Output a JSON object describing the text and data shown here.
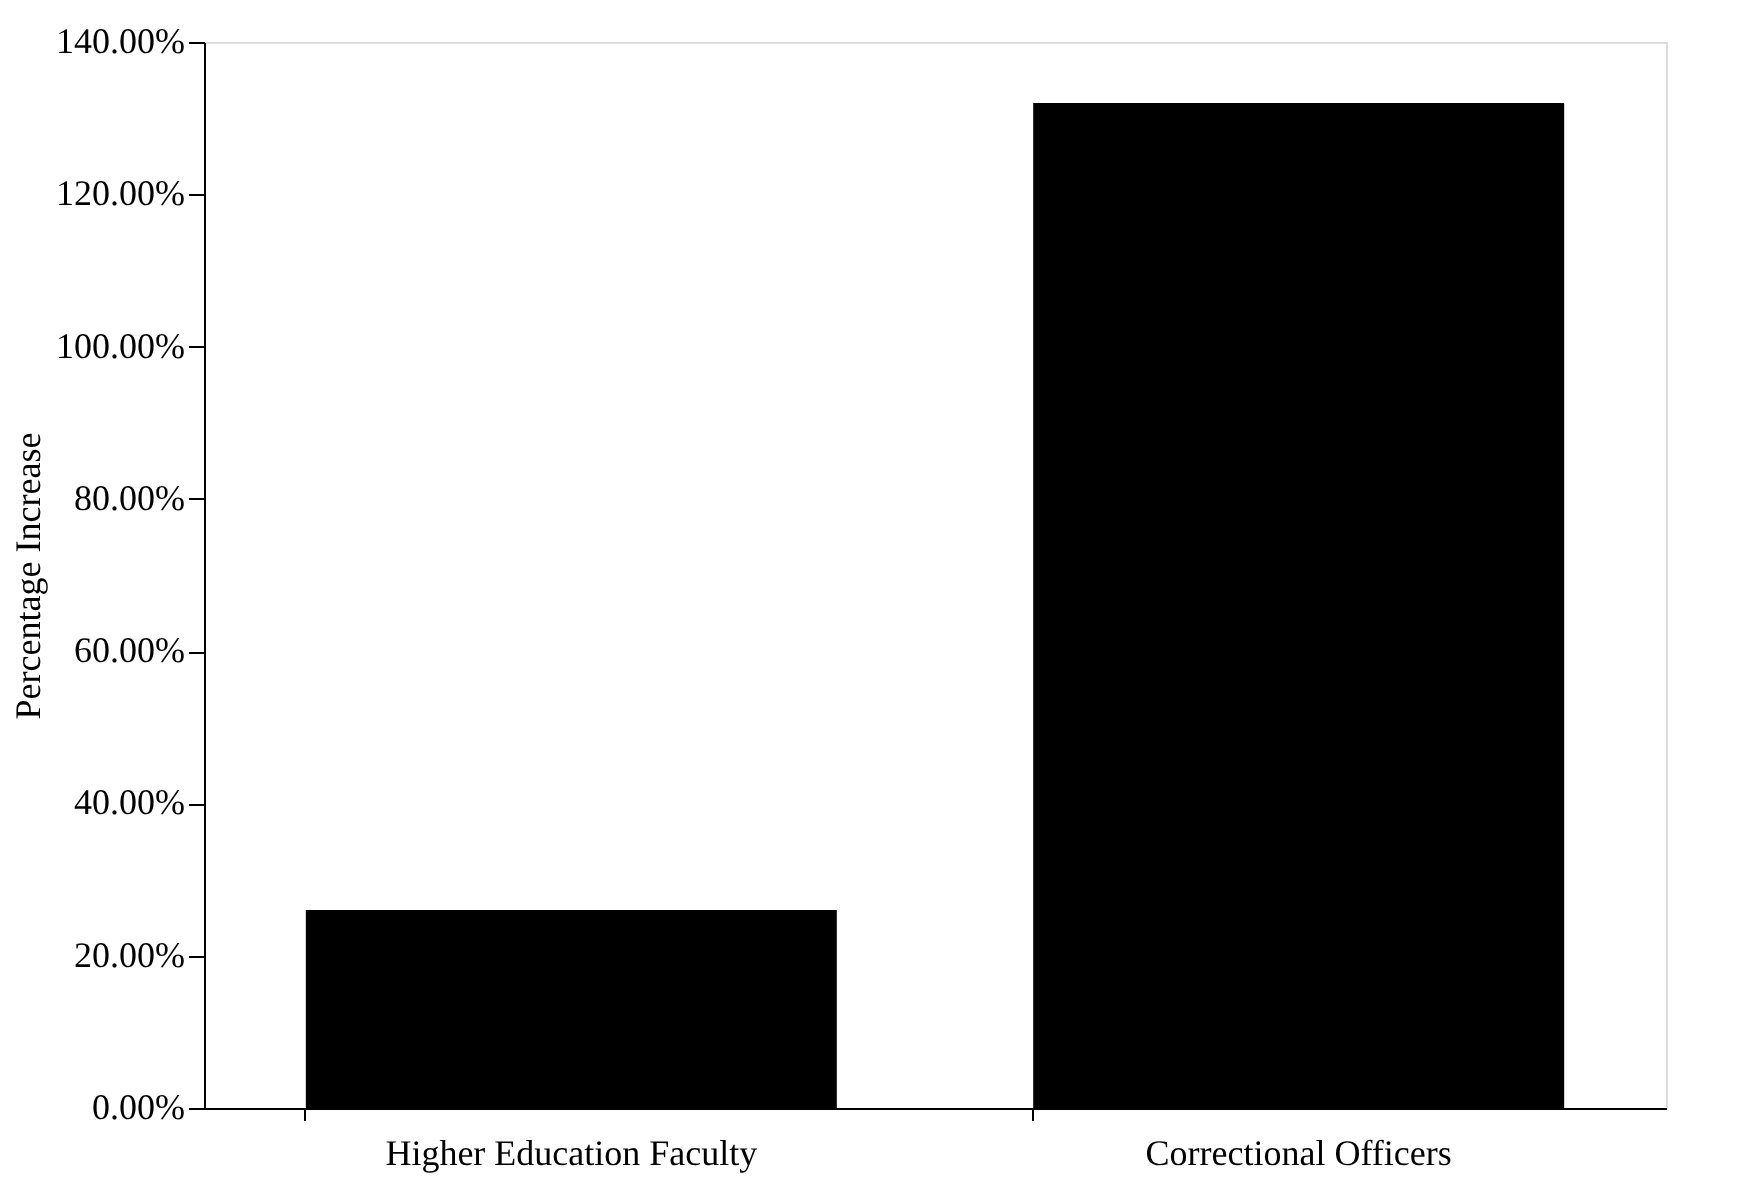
{
  "chart_data": {
    "type": "bar",
    "ylabel": "Percentage Increase",
    "categories": [
      "Higher Education Faculty",
      "Correctional Officers"
    ],
    "values": [
      26,
      132
    ],
    "color": "#000000",
    "ylim": [
      0,
      140
    ],
    "yticks": [
      {
        "value": 0,
        "label": "0.00%"
      },
      {
        "value": 20,
        "label": "20.00%"
      },
      {
        "value": 40,
        "label": "40.00%"
      },
      {
        "value": 60,
        "label": "60.00%"
      },
      {
        "value": 80,
        "label": "80.00%"
      },
      {
        "value": 100,
        "label": "100.00%"
      },
      {
        "value": 120,
        "label": "120.00%"
      },
      {
        "value": 140,
        "label": "140.00%"
      }
    ],
    "grid": false
  }
}
